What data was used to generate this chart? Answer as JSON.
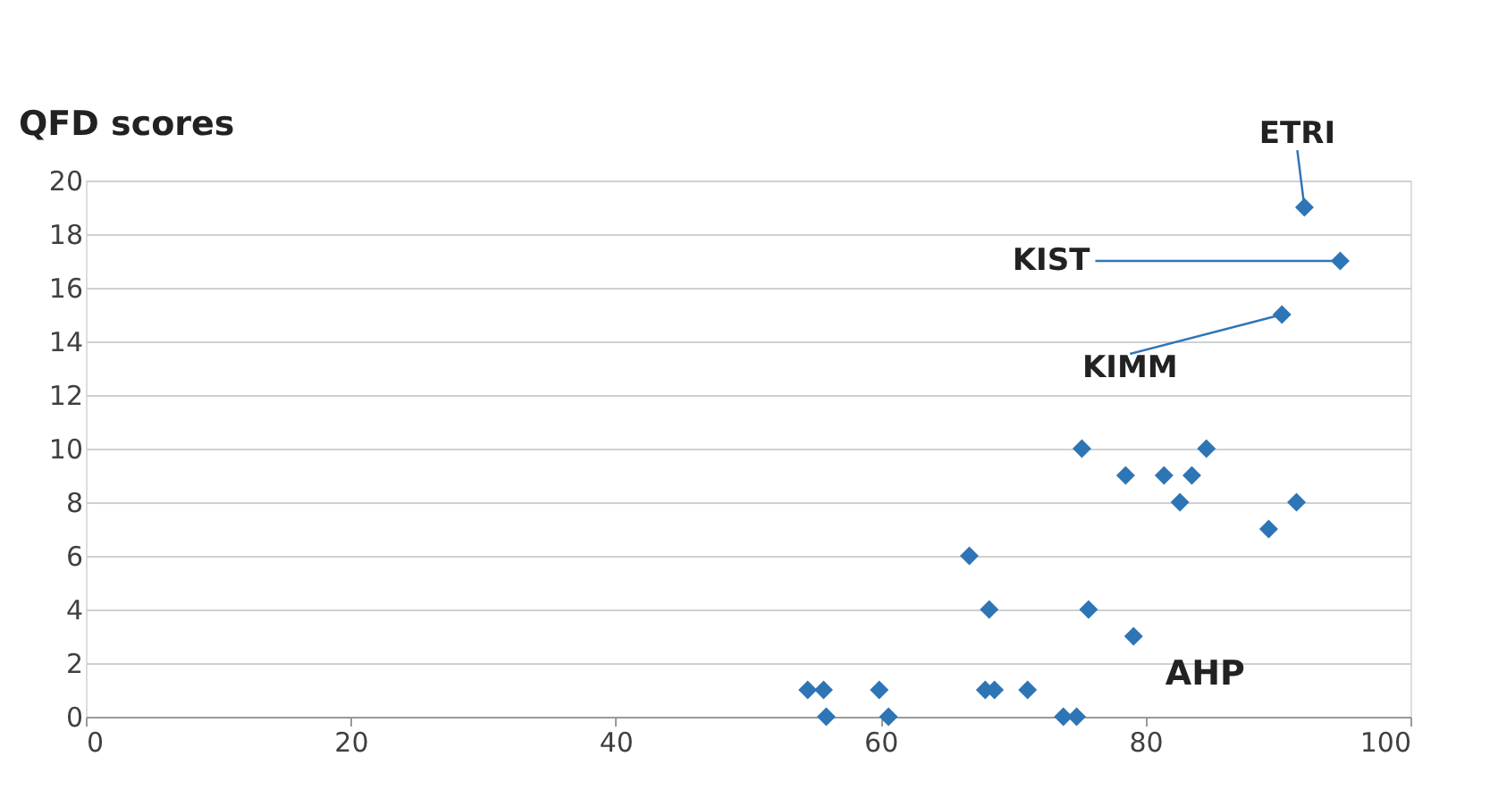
{
  "chart_data": {
    "type": "scatter",
    "ylabel": "QFD scores",
    "xlabel": "AHP",
    "x": [
      92.0,
      94.7,
      90.3,
      75.2,
      84.6,
      78.5,
      81.4,
      83.5,
      82.6,
      91.4,
      89.3,
      66.7,
      68.2,
      75.7,
      79.1,
      54.5,
      55.7,
      59.9,
      67.9,
      68.6,
      71.1,
      55.9,
      60.6,
      73.8,
      74.8
    ],
    "values": [
      19,
      17,
      15,
      10,
      10,
      9,
      9,
      9,
      8,
      8,
      7,
      6,
      4,
      4,
      3,
      1,
      1,
      1,
      1,
      1,
      1,
      0,
      0,
      0,
      0
    ],
    "color": "#2e75b6",
    "marker": "diamond",
    "xlim": [
      0,
      100
    ],
    "xticks": [
      0,
      20,
      40,
      60,
      80,
      100
    ],
    "ylim": [
      0,
      20
    ],
    "yticks": [
      0,
      2,
      4,
      6,
      8,
      10,
      12,
      14,
      16,
      18,
      20
    ],
    "grid": "y",
    "annotations": [
      {
        "text": "ETRI",
        "x": 92.0,
        "y": 19
      },
      {
        "text": "KIST",
        "x": 94.7,
        "y": 17
      },
      {
        "text": "KIMM",
        "x": 90.3,
        "y": 15
      }
    ]
  }
}
